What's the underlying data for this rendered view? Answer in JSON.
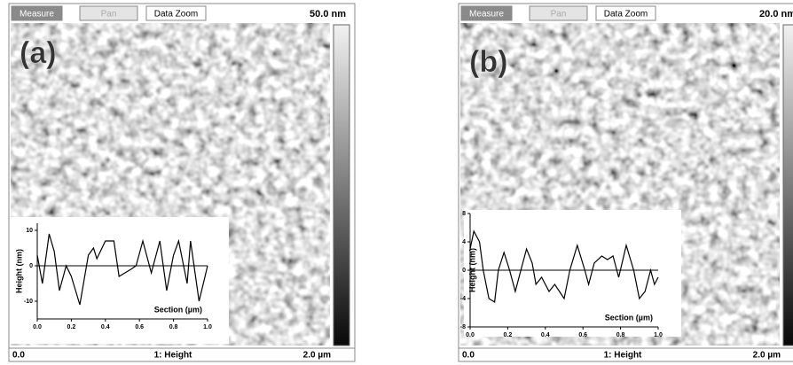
{
  "panels": [
    {
      "toolbar": [
        "Measure",
        "Pan",
        "Data Zoom"
      ],
      "scale_max": "50.0 nm",
      "label": "(a)",
      "footer": {
        "left": "0.0",
        "center": "1: Height",
        "right": "2.0 µm"
      },
      "inset": {
        "type": "line",
        "x_label": "Section (µm)",
        "y_label": "Height (nm)",
        "xlim": [
          0,
          1
        ],
        "ylim": [
          -15,
          12
        ],
        "xticks": [
          {
            "value": 0,
            "label": "0.0"
          },
          {
            "value": 0.2,
            "label": "0.2"
          },
          {
            "value": 0.4,
            "label": "0.4"
          },
          {
            "value": 0.6,
            "label": "0.6"
          },
          {
            "value": 0.8,
            "label": "0.8"
          },
          {
            "value": 1,
            "label": "1.0"
          }
        ],
        "yticks": [
          -10,
          0,
          10
        ],
        "x": [
          0,
          0.03,
          0.07,
          0.1,
          0.13,
          0.17,
          0.2,
          0.25,
          0.3,
          0.33,
          0.35,
          0.4,
          0.45,
          0.48,
          0.55,
          0.58,
          0.62,
          0.67,
          0.72,
          0.76,
          0.8,
          0.83,
          0.88,
          0.9,
          0.95,
          0.98,
          1
        ],
        "values": [
          3,
          -5,
          9,
          4,
          -7,
          0,
          -3,
          -11,
          3,
          5,
          2,
          7,
          7,
          -3,
          -1,
          0,
          7,
          -2,
          7,
          -7,
          3,
          7,
          -5,
          7,
          -10,
          -4,
          0
        ]
      }
    },
    {
      "toolbar": [
        "Measure",
        "Pan",
        "Data Zoom"
      ],
      "scale_max": "20.0 nm",
      "label": "(b)",
      "footer": {
        "left": "0.0",
        "center": "1: Height",
        "right": "2.0 µm"
      },
      "inset": {
        "type": "line",
        "x_label": "Section (µm)",
        "y_label": "Height (nm)",
        "xlim": [
          0,
          1
        ],
        "ylim": [
          -8,
          8
        ],
        "xticks": [
          {
            "value": 0,
            "label": "0.0"
          },
          {
            "value": 0.2,
            "label": "0.2"
          },
          {
            "value": 0.4,
            "label": "0.4"
          },
          {
            "value": 0.6,
            "label": "0.6"
          },
          {
            "value": 0.8,
            "label": "0.8"
          },
          {
            "value": 1,
            "label": "1.0"
          }
        ],
        "yticks": [
          -8,
          -4,
          0,
          4,
          8
        ],
        "x": [
          0,
          0.02,
          0.05,
          0.07,
          0.1,
          0.13,
          0.15,
          0.18,
          0.21,
          0.24,
          0.27,
          0.3,
          0.33,
          0.35,
          0.38,
          0.42,
          0.45,
          0.5,
          0.53,
          0.57,
          0.61,
          0.63,
          0.66,
          0.7,
          0.73,
          0.76,
          0.79,
          0.83,
          0.87,
          0.9,
          0.93,
          0.96,
          0.98,
          1
        ],
        "values": [
          3,
          5.5,
          4,
          0,
          -4,
          -4.5,
          0,
          2.5,
          0,
          -3,
          0,
          3,
          1,
          -2,
          -1,
          -3,
          -2,
          -4,
          0,
          3.5,
          0,
          -2,
          1,
          2,
          1.5,
          2,
          -1,
          3.5,
          0,
          -4,
          -3,
          0,
          -2,
          -1
        ]
      }
    }
  ]
}
